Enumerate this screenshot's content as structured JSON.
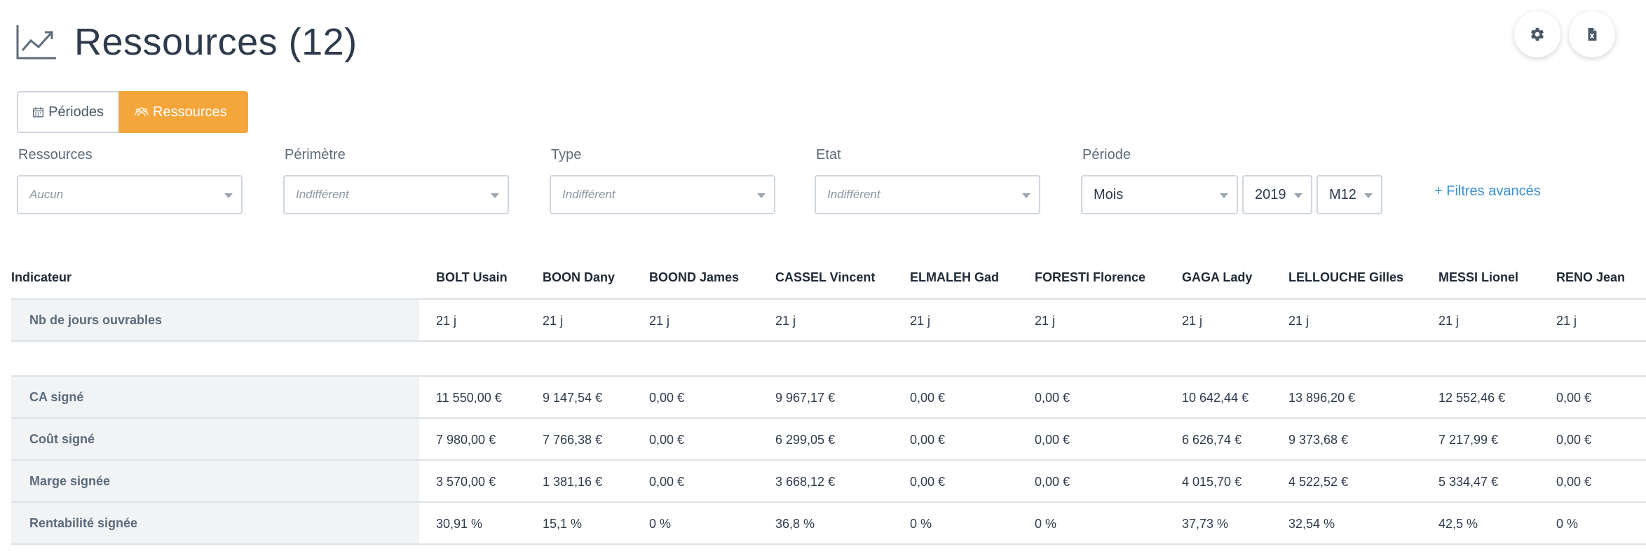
{
  "header": {
    "title": "Ressources (12)"
  },
  "toolbar": {
    "settings_icon": "gear-icon",
    "export_icon": "excel-file-icon"
  },
  "tabs": [
    {
      "label": "Périodes",
      "icon": "calendar-icon",
      "active": false
    },
    {
      "label": "Ressources",
      "icon": "users-icon",
      "active": true
    }
  ],
  "filters": {
    "ressources": {
      "label": "Ressources",
      "value": "Aucun"
    },
    "perimetre": {
      "label": "Périmètre",
      "value": "Indifférent"
    },
    "type": {
      "label": "Type",
      "value": "Indifférent"
    },
    "etat": {
      "label": "Etat",
      "value": "Indifférent"
    },
    "periode": {
      "label": "Période",
      "unit": "Mois",
      "year": "2019",
      "month": "M12"
    },
    "advanced_link": "+ Filtres avancés"
  },
  "table": {
    "indicator_header": "Indicateur",
    "columns": [
      "BOLT Usain",
      "BOON Dany",
      "BOOND James",
      "CASSEL Vincent",
      "ELMALEH Gad",
      "FORESTI Florence",
      "GAGA Lady",
      "LELLOUCHE Gilles",
      "MESSI Lionel",
      "RENO Jean"
    ],
    "rows": [
      {
        "label": "Nb de jours ouvrables",
        "values": [
          "21 j",
          "21 j",
          "21 j",
          "21 j",
          "21 j",
          "21 j",
          "21 j",
          "21 j",
          "21 j",
          "21 j"
        ]
      },
      {
        "label": "CA signé",
        "values": [
          "11 550,00 €",
          "9 147,54 €",
          "0,00 €",
          "9 967,17 €",
          "0,00 €",
          "0,00 €",
          "10 642,44 €",
          "13 896,20 €",
          "12 552,46 €",
          "0,00 €"
        ]
      },
      {
        "label": "Coût signé",
        "values": [
          "7 980,00 €",
          "7 766,38 €",
          "0,00 €",
          "6 299,05 €",
          "0,00 €",
          "0,00 €",
          "6 626,74 €",
          "9 373,68 €",
          "7 217,99 €",
          "0,00 €"
        ]
      },
      {
        "label": "Marge signée",
        "values": [
          "3 570,00 €",
          "1 381,16 €",
          "0,00 €",
          "3 668,12 €",
          "0,00 €",
          "0,00 €",
          "4 015,70 €",
          "4 522,52 €",
          "5 334,47 €",
          "0,00 €"
        ]
      },
      {
        "label": "Rentabilité signée",
        "values": [
          "30,91 %",
          "15,1 %",
          "0 %",
          "36,8 %",
          "0 %",
          "0 %",
          "37,73 %",
          "32,54 %",
          "42,5 %",
          "0 %"
        ]
      }
    ]
  }
}
